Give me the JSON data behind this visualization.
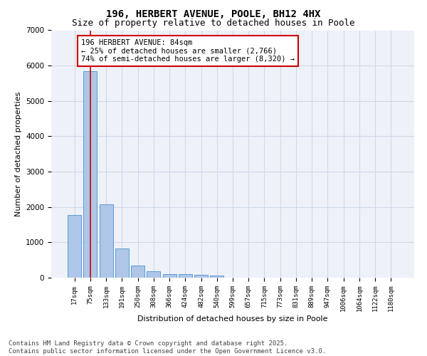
{
  "title1": "196, HERBERT AVENUE, POOLE, BH12 4HX",
  "title2": "Size of property relative to detached houses in Poole",
  "xlabel": "Distribution of detached houses by size in Poole",
  "ylabel": "Number of detached properties",
  "categories": [
    "17sqm",
    "75sqm",
    "133sqm",
    "191sqm",
    "250sqm",
    "308sqm",
    "366sqm",
    "424sqm",
    "482sqm",
    "540sqm",
    "599sqm",
    "657sqm",
    "715sqm",
    "773sqm",
    "831sqm",
    "889sqm",
    "947sqm",
    "1006sqm",
    "1064sqm",
    "1122sqm",
    "1180sqm"
  ],
  "values": [
    1770,
    5850,
    2080,
    820,
    340,
    185,
    110,
    95,
    80,
    60,
    0,
    0,
    0,
    0,
    0,
    0,
    0,
    0,
    0,
    0,
    0
  ],
  "bar_color": "#aec6e8",
  "bar_edge_color": "#5b9bd5",
  "vline_x": 1.0,
  "vline_color": "#cc0000",
  "annotation_text": "196 HERBERT AVENUE: 84sqm\n← 25% of detached houses are smaller (2,766)\n74% of semi-detached houses are larger (8,320) →",
  "annotation_box_color": "#cc0000",
  "ylim": [
    0,
    7000
  ],
  "yticks": [
    0,
    1000,
    2000,
    3000,
    4000,
    5000,
    6000,
    7000
  ],
  "grid_color": "#d0d8e8",
  "background_color": "#eef2f8",
  "footer_text": "Contains HM Land Registry data © Crown copyright and database right 2025.\nContains public sector information licensed under the Open Government Licence v3.0.",
  "title_fontsize": 10,
  "subtitle_fontsize": 9,
  "axis_label_fontsize": 8,
  "tick_fontsize": 6.5,
  "annotation_fontsize": 7.5,
  "footer_fontsize": 6.5
}
